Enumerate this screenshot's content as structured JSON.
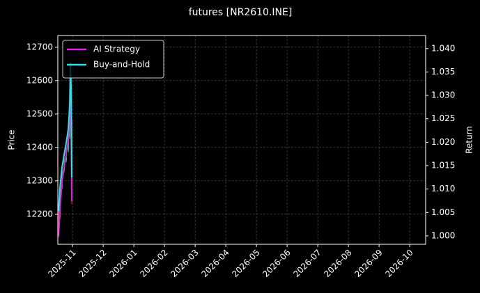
{
  "chart_data": {
    "type": "line",
    "title": "futures [NR2610.INE]",
    "ylabel": "Price",
    "y2label": "Return",
    "xlim": [
      -0.48,
      11.52
    ],
    "xticks": [
      {
        "value": 0,
        "label": "2025-11"
      },
      {
        "value": 1,
        "label": "2025-12"
      },
      {
        "value": 2,
        "label": "2026-01"
      },
      {
        "value": 3,
        "label": "2026-02"
      },
      {
        "value": 4,
        "label": "2026-03"
      },
      {
        "value": 5,
        "label": "2026-04"
      },
      {
        "value": 6,
        "label": "2026-05"
      },
      {
        "value": 7,
        "label": "2026-06"
      },
      {
        "value": 8,
        "label": "2026-07"
      },
      {
        "value": 9,
        "label": "2026-08"
      },
      {
        "value": 10,
        "label": "2026-09"
      },
      {
        "value": 11,
        "label": "2026-10"
      }
    ],
    "ylim": [
      12110,
      12735
    ],
    "yticks": [
      12200,
      12300,
      12400,
      12500,
      12600,
      12700
    ],
    "y2lim": [
      0.9982,
      1.0428
    ],
    "y2ticks": [
      {
        "value": 1.0,
        "label": "1.000"
      },
      {
        "value": 1.005,
        "label": "1.005"
      },
      {
        "value": 1.01,
        "label": "1.010"
      },
      {
        "value": 1.015,
        "label": "1.015"
      },
      {
        "value": 1.02,
        "label": "1.020"
      },
      {
        "value": 1.025,
        "label": "1.025"
      },
      {
        "value": 1.03,
        "label": "1.030"
      },
      {
        "value": 1.035,
        "label": "1.035"
      },
      {
        "value": 1.04,
        "label": "1.040"
      }
    ],
    "grid": true,
    "legend": "upper left",
    "x": [
      -0.455,
      -0.409,
      -0.341,
      -0.273,
      -0.205,
      -0.136,
      -0.091,
      -0.068,
      -0.045,
      -0.023
    ],
    "series": [
      {
        "type": "candlestick",
        "up_color": "#22cc44",
        "down_color": "#ee2222",
        "open": [
          12220,
          12190,
          12280,
          12330,
          12360,
          12390,
          12430,
          12500,
          12560,
          12480
        ],
        "high": [
          12230,
          12290,
          12340,
          12370,
          12400,
          12440,
          12510,
          12570,
          12565,
          12485
        ],
        "low": [
          12130,
          12185,
          12275,
          12325,
          12355,
          12385,
          12425,
          12495,
          12470,
          12230
        ],
        "close": [
          12190,
          12280,
          12330,
          12360,
          12390,
          12430,
          12500,
          12560,
          12480,
          12300
        ]
      },
      {
        "type": "line",
        "name": "AI Strategy",
        "color": "#e020e0",
        "axis": "y2",
        "values": [
          1.0,
          1.0058,
          1.0117,
          1.0147,
          1.0177,
          1.0207,
          1.0251,
          1.0281,
          1.0222,
          1.0073
        ]
      },
      {
        "type": "line",
        "name": "Buy-and-Hold",
        "color": "#30e0e8",
        "axis": "y2",
        "values": [
          1.0053,
          1.0104,
          1.0147,
          1.0174,
          1.0199,
          1.0229,
          1.0281,
          1.037,
          1.0311,
          1.0125
        ]
      }
    ]
  }
}
